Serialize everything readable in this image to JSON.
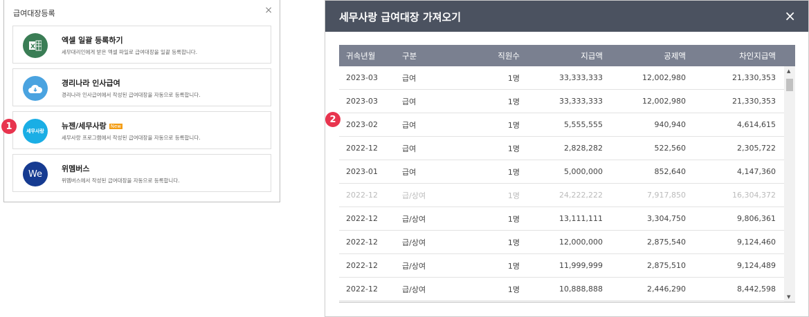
{
  "left_panel": {
    "title": "급여대장등록",
    "close": "×",
    "cards": [
      {
        "title": "엑셀 일괄 등록하기",
        "desc": "세무대리인에게 받은 엑셀 파일로 급여대장을 일괄 등록합니다.",
        "icon": "excel-icon",
        "color": "#3a7d55"
      },
      {
        "title": "경리나라 인사급여",
        "desc": "경리나라 인사급여에서 작성된 급여대장을 자동으로 등록합니다.",
        "icon": "cloud-download-icon",
        "color": "#4aa3e0"
      },
      {
        "title": "뉴젠/세무사랑",
        "badge": "New",
        "desc": "세무사랑 프로그램에서 작성된 급여대장을 자동으로 등록합니다.",
        "icon": "semusarang-logo",
        "logo_text": "세무사랑",
        "color": "#1aaee5"
      },
      {
        "title": "위멤버스",
        "desc": "위멤버스에서 작성된 급여대장을 자동으로 등록합니다.",
        "icon": "wemembers-logo",
        "logo_text": "We",
        "color": "#163b91"
      }
    ]
  },
  "steps": [
    "1",
    "2"
  ],
  "modal": {
    "title": "세무사랑 급여대장 가져오기",
    "close": "×",
    "columns": [
      "귀속년월",
      "구분",
      "직원수",
      "지급액",
      "공제액",
      "차인지급액"
    ],
    "rows": [
      [
        "2023-03",
        "급여",
        "1명",
        "33,333,333",
        "12,002,980",
        "21,330,353"
      ],
      [
        "2023-03",
        "급여",
        "1명",
        "33,333,333",
        "12,002,980",
        "21,330,353"
      ],
      [
        "2023-02",
        "급여",
        "1명",
        "5,555,555",
        "940,940",
        "4,614,615"
      ],
      [
        "2022-12",
        "급여",
        "1명",
        "2,828,282",
        "522,560",
        "2,305,722"
      ],
      [
        "2023-01",
        "급여",
        "1명",
        "5,000,000",
        "852,640",
        "4,147,360"
      ],
      [
        "2022-12",
        "급/상여",
        "1명",
        "24,222,222",
        "7,917,850",
        "16,304,372"
      ],
      [
        "2022-12",
        "급/상여",
        "1명",
        "13,111,111",
        "3,304,750",
        "9,806,361"
      ],
      [
        "2022-12",
        "급/상여",
        "1명",
        "12,000,000",
        "2,875,540",
        "9,124,460"
      ],
      [
        "2022-12",
        "급/상여",
        "1명",
        "11,999,999",
        "2,875,510",
        "9,124,489"
      ],
      [
        "2022-12",
        "급/상여",
        "1명",
        "10,888,888",
        "2,446,290",
        "8,442,598"
      ]
    ],
    "disabled_row_index": 5
  }
}
